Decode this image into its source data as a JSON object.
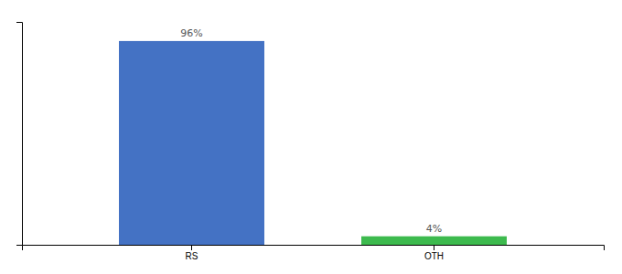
{
  "chart_data": {
    "type": "bar",
    "categories": [
      "RS",
      "OTH"
    ],
    "values": [
      96,
      4
    ],
    "colors": [
      "#4472c4",
      "#3dba4e"
    ],
    "data_labels": true,
    "value_labels": [
      "96%",
      "4%"
    ],
    "ylim": [
      0,
      105
    ],
    "yticks": [],
    "tick_labels": "x"
  }
}
